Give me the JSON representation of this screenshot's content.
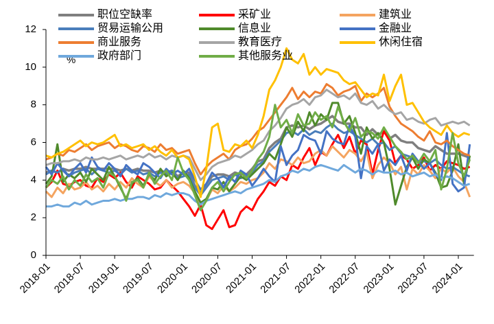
{
  "chart_data": {
    "type": "line",
    "y_label": "%",
    "categories": [
      "2018-01",
      null,
      null,
      null,
      null,
      null,
      "2018-07",
      null,
      null,
      null,
      null,
      null,
      "2019-01",
      null,
      null,
      null,
      null,
      null,
      "2019-07",
      null,
      null,
      null,
      null,
      null,
      "2020-01",
      null,
      null,
      null,
      null,
      null,
      "2020-07",
      null,
      null,
      null,
      null,
      null,
      "2021-01",
      null,
      null,
      null,
      null,
      null,
      "2021-07",
      null,
      null,
      null,
      null,
      null,
      "2022-01",
      null,
      null,
      null,
      null,
      null,
      "2022-07",
      null,
      null,
      null,
      null,
      null,
      "2023-01",
      null,
      null,
      null,
      null,
      null,
      "2023-07",
      null,
      null,
      null,
      null,
      null,
      "2024-01",
      null,
      null
    ],
    "ylim": [
      0,
      12
    ],
    "yticks": [
      0,
      2,
      4,
      6,
      8,
      10,
      12
    ],
    "series": [
      {
        "name": "职位空缺率",
        "color": "#7f7f7f",
        "values": [
          4.4,
          4.5,
          4.4,
          4.6,
          4.5,
          4.6,
          4.6,
          4.7,
          4.6,
          4.6,
          4.6,
          4.6,
          4.6,
          4.5,
          4.6,
          4.5,
          4.6,
          4.5,
          4.5,
          4.4,
          4.5,
          4.4,
          4.5,
          4.2,
          4.4,
          4.4,
          3.7,
          3.3,
          3.8,
          4.2,
          4.3,
          4.3,
          4.2,
          4.4,
          4.3,
          4.3,
          4.6,
          5.0,
          5.1,
          5.7,
          6.0,
          6.2,
          6.8,
          6.9,
          6.8,
          6.9,
          6.7,
          6.9,
          7.0,
          7.2,
          7.4,
          7.1,
          7.0,
          7.0,
          6.8,
          6.8,
          6.4,
          6.7,
          6.4,
          6.6,
          6.2,
          6.4,
          6.1,
          6.0,
          6.0,
          5.7,
          5.6,
          5.5,
          5.8,
          5.6,
          5.4,
          5.4,
          5.4,
          5.3,
          5.2
        ]
      },
      {
        "name": "采矿业",
        "color": "#ff0000",
        "values": [
          3.6,
          3.9,
          4.5,
          3.8,
          3.7,
          3.9,
          4.0,
          3.7,
          3.6,
          4.1,
          3.9,
          4.3,
          4.1,
          4.4,
          3.9,
          3.6,
          4.2,
          4.0,
          3.8,
          3.5,
          3.6,
          4.0,
          3.7,
          3.4,
          3.0,
          2.6,
          2.1,
          2.7,
          1.6,
          1.4,
          1.9,
          2.4,
          1.5,
          1.6,
          2.3,
          2.6,
          2.4,
          3.0,
          3.4,
          3.9,
          3.7,
          4.2,
          4.0,
          4.8,
          4.6,
          5.2,
          5.7,
          4.8,
          5.5,
          5.3,
          5.9,
          6.4,
          5.7,
          6.3,
          5.4,
          6.1,
          5.9,
          4.3,
          5.6,
          6.6,
          6.1,
          4.9,
          5.3,
          5.1,
          4.6,
          4.8,
          5.2,
          4.5,
          4.8,
          4.6,
          5.0,
          4.9,
          4.8,
          4.6,
          4.7
        ]
      },
      {
        "name": "建筑业",
        "color": "#f4a460",
        "values": [
          3.4,
          3.1,
          3.6,
          3.3,
          3.8,
          3.5,
          3.6,
          3.9,
          3.5,
          3.7,
          3.4,
          3.8,
          3.5,
          3.9,
          3.6,
          4.1,
          3.8,
          3.6,
          4.2,
          3.9,
          3.7,
          4.0,
          3.6,
          3.8,
          3.9,
          3.7,
          3.3,
          2.7,
          2.9,
          3.5,
          3.3,
          3.7,
          3.4,
          3.6,
          3.9,
          3.8,
          4.0,
          4.1,
          4.4,
          4.9,
          4.6,
          5.1,
          5.0,
          4.8,
          5.2,
          4.9,
          5.0,
          5.4,
          5.6,
          5.3,
          5.8,
          5.5,
          5.2,
          5.6,
          5.4,
          5.0,
          5.5,
          4.1,
          4.8,
          5.2,
          4.9,
          4.3,
          4.7,
          3.5,
          4.6,
          4.3,
          4.8,
          4.5,
          4.1,
          4.6,
          4.4,
          4.7,
          4.2,
          3.9,
          3.1
        ]
      },
      {
        "name": "贸易运输公用",
        "color": "#4a7ebb",
        "values": [
          4.3,
          4.5,
          4.4,
          4.6,
          4.2,
          4.4,
          4.5,
          4.6,
          4.3,
          4.6,
          4.5,
          4.4,
          4.5,
          4.3,
          4.6,
          4.4,
          4.5,
          4.3,
          4.4,
          4.2,
          4.4,
          4.3,
          4.5,
          4.1,
          4.2,
          4.3,
          3.6,
          3.2,
          3.6,
          4.0,
          4.1,
          4.2,
          4.0,
          4.3,
          4.1,
          4.2,
          4.4,
          4.8,
          5.0,
          5.5,
          5.8,
          6.1,
          6.5,
          6.6,
          6.4,
          6.7,
          6.4,
          6.6,
          6.5,
          6.8,
          7.0,
          6.7,
          6.5,
          6.6,
          6.4,
          6.2,
          6.0,
          6.2,
          5.9,
          6.0,
          5.6,
          5.8,
          5.4,
          5.3,
          5.2,
          5.0,
          5.0,
          4.9,
          5.1,
          4.8,
          4.6,
          4.7,
          4.5,
          4.3,
          4.2
        ]
      },
      {
        "name": "信息业",
        "color": "#4f8a2b",
        "values": [
          3.8,
          4.2,
          5.9,
          3.9,
          4.3,
          4.1,
          4.4,
          3.9,
          4.6,
          4.3,
          4.0,
          4.7,
          4.2,
          3.6,
          3.0,
          3.8,
          4.1,
          3.7,
          4.3,
          4.0,
          4.6,
          4.2,
          4.4,
          4.0,
          4.5,
          4.1,
          3.4,
          2.8,
          3.0,
          3.6,
          3.5,
          3.9,
          3.4,
          3.8,
          4.2,
          4.0,
          4.3,
          4.6,
          4.9,
          5.4,
          5.1,
          5.9,
          6.8,
          6.3,
          7.1,
          6.6,
          7.6,
          6.9,
          7.5,
          7.2,
          8.1,
          8.1,
          7.0,
          7.4,
          6.5,
          5.4,
          6.8,
          6.2,
          6.5,
          6.0,
          4.6,
          2.7,
          3.7,
          4.7,
          5.2,
          4.6,
          5.1,
          4.9,
          4.4,
          3.6,
          3.7,
          4.5,
          5.9,
          3.8,
          5.3
        ]
      },
      {
        "name": "金融业",
        "color": "#4472c4",
        "values": [
          4.7,
          4.3,
          4.9,
          4.5,
          4.2,
          4.6,
          4.9,
          4.4,
          5.2,
          4.7,
          4.5,
          4.9,
          4.6,
          4.2,
          4.8,
          4.5,
          4.3,
          4.9,
          4.7,
          4.4,
          4.1,
          4.6,
          4.3,
          4.5,
          4.3,
          4.6,
          4.0,
          3.5,
          3.8,
          4.4,
          4.1,
          3.6,
          4.2,
          3.9,
          4.5,
          4.3,
          3.7,
          4.1,
          4.6,
          4.2,
          3.9,
          5.8,
          4.8,
          5.3,
          5.6,
          6.4,
          6.2,
          6.1,
          5.4,
          6.6,
          6.2,
          6.0,
          5.9,
          6.9,
          6.3,
          4.1,
          5.8,
          5.4,
          5.9,
          4.5,
          5.1,
          4.8,
          5.3,
          4.5,
          5.4,
          5.0,
          4.6,
          4.9,
          4.3,
          4.0,
          6.5,
          3.8,
          3.4,
          3.6,
          5.9
        ]
      },
      {
        "name": "商业服务",
        "color": "#ed7d31",
        "values": [
          5.1,
          5.2,
          5.4,
          5.3,
          5.6,
          5.5,
          5.7,
          5.9,
          5.6,
          5.8,
          5.9,
          6.0,
          5.7,
          5.9,
          5.8,
          5.6,
          5.5,
          5.8,
          5.7,
          5.5,
          5.9,
          5.6,
          5.7,
          5.4,
          5.5,
          5.6,
          4.9,
          4.3,
          4.7,
          5.0,
          5.2,
          5.4,
          5.1,
          5.6,
          5.8,
          5.9,
          6.2,
          6.6,
          6.8,
          7.2,
          7.6,
          8.0,
          8.4,
          8.9,
          8.3,
          8.7,
          8.4,
          8.7,
          8.6,
          9.1,
          8.9,
          8.5,
          8.7,
          8.8,
          9.0,
          8.2,
          8.6,
          8.4,
          8.6,
          8.9,
          7.9,
          7.4,
          7.0,
          6.8,
          6.6,
          6.3,
          6.1,
          6.6,
          6.0,
          5.9,
          6.1,
          5.8,
          5.6,
          5.4,
          5.3
        ]
      },
      {
        "name": "教育医疗",
        "color": "#a5a5a5",
        "values": [
          4.8,
          4.9,
          4.9,
          5.0,
          5.0,
          5.1,
          5.0,
          5.2,
          5.1,
          5.1,
          5.2,
          5.1,
          5.2,
          5.3,
          5.1,
          5.2,
          5.3,
          5.2,
          5.4,
          5.2,
          5.3,
          5.1,
          5.3,
          5.2,
          5.3,
          5.2,
          4.6,
          4.0,
          4.3,
          4.7,
          4.9,
          5.0,
          5.1,
          5.3,
          5.2,
          5.4,
          5.6,
          5.9,
          6.1,
          6.6,
          6.9,
          7.3,
          7.8,
          8.0,
          8.1,
          8.3,
          8.0,
          8.4,
          8.5,
          8.8,
          8.6,
          8.4,
          8.5,
          8.3,
          8.6,
          8.1,
          8.0,
          8.2,
          7.8,
          8.0,
          7.7,
          7.5,
          7.6,
          7.2,
          7.3,
          7.1,
          7.0,
          7.2,
          7.3,
          6.9,
          7.0,
          7.1,
          7.0,
          7.1,
          6.9
        ]
      },
      {
        "name": "休闲住宿",
        "color": "#ffc000",
        "values": [
          5.3,
          5.2,
          5.4,
          5.5,
          5.7,
          5.9,
          6.1,
          5.8,
          6.0,
          5.9,
          6.0,
          6.2,
          6.4,
          5.8,
          5.9,
          5.7,
          5.8,
          5.9,
          5.6,
          5.8,
          5.5,
          5.3,
          5.6,
          5.2,
          5.3,
          5.1,
          4.2,
          3.1,
          4.6,
          6.8,
          7.0,
          5.6,
          5.5,
          5.9,
          5.8,
          6.1,
          5.7,
          6.4,
          7.4,
          8.8,
          9.3,
          10.0,
          11.0,
          10.4,
          10.2,
          10.7,
          9.6,
          10.0,
          9.6,
          9.9,
          9.8,
          9.7,
          9.3,
          9.1,
          9.2,
          8.8,
          8.4,
          8.6,
          8.5,
          9.6,
          8.2,
          9.0,
          9.6,
          8.0,
          8.1,
          7.6,
          7.1,
          6.8,
          6.6,
          6.4,
          6.9,
          6.5,
          6.3,
          6.5,
          6.4
        ]
      },
      {
        "name": "政府部门",
        "color": "#6fa8dc",
        "values": [
          2.6,
          2.6,
          2.7,
          2.6,
          2.6,
          2.8,
          2.7,
          2.9,
          2.7,
          2.8,
          2.9,
          2.9,
          3.0,
          2.9,
          3.0,
          3.0,
          3.1,
          3.1,
          3.0,
          3.2,
          3.1,
          3.3,
          3.2,
          3.3,
          3.3,
          3.2,
          2.9,
          2.7,
          2.9,
          3.0,
          3.1,
          3.2,
          3.3,
          3.4,
          3.3,
          3.5,
          3.6,
          3.7,
          3.8,
          4.0,
          3.9,
          4.2,
          4.3,
          4.5,
          4.4,
          4.6,
          4.5,
          4.7,
          4.8,
          4.7,
          4.6,
          4.5,
          4.8,
          4.6,
          4.4,
          4.6,
          4.5,
          4.3,
          4.5,
          4.4,
          4.4,
          4.5,
          4.3,
          4.4,
          4.2,
          4.3,
          4.4,
          4.2,
          4.3,
          4.1,
          4.2,
          4.1,
          3.9,
          3.7,
          3.8
        ]
      },
      {
        "name": "其他服务业",
        "color": "#70ad47",
        "values": [
          3.6,
          4.0,
          3.8,
          4.2,
          3.5,
          4.0,
          3.7,
          4.3,
          3.9,
          4.1,
          3.6,
          4.4,
          4.2,
          3.7,
          2.9,
          3.9,
          4.0,
          3.6,
          4.4,
          3.8,
          4.2,
          4.5,
          4.0,
          5.2,
          4.4,
          4.0,
          3.2,
          2.4,
          2.9,
          3.6,
          3.9,
          3.4,
          3.9,
          4.3,
          4.4,
          4.1,
          4.5,
          5.1,
          5.5,
          6.3,
          8.0,
          6.8,
          7.2,
          6.5,
          7.5,
          6.9,
          7.0,
          7.6,
          7.2,
          7.4,
          6.8,
          7.9,
          7.1,
          6.6,
          7.3,
          6.3,
          6.6,
          6.5,
          6.2,
          6.8,
          6.3,
          5.8,
          5.5,
          5.1,
          5.3,
          4.9,
          5.4,
          5.0,
          5.6,
          3.5,
          4.6,
          6.5,
          4.9,
          4.2,
          5.1
        ]
      }
    ]
  }
}
